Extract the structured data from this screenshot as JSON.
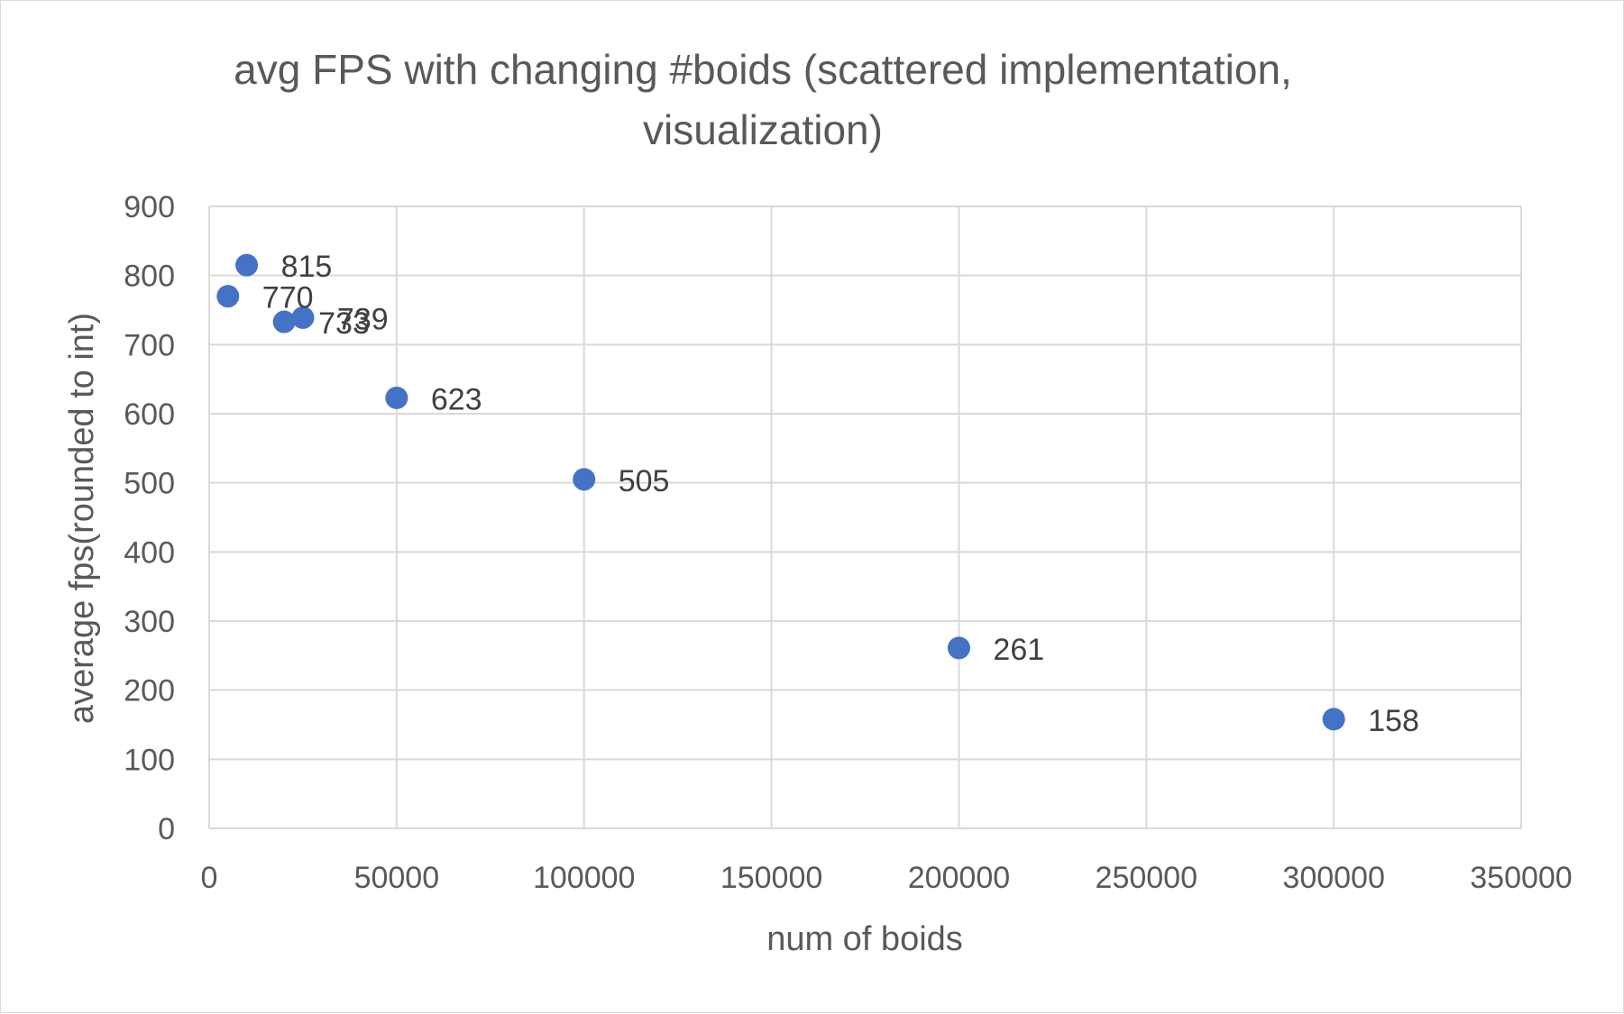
{
  "chart_data": {
    "type": "scatter",
    "title_lines": [
      "avg FPS with changing #boids (scattered implementation,",
      "visualization)"
    ],
    "xlabel": "num of boids",
    "ylabel": "average fps(rounded to int)",
    "xlim": [
      0,
      350000
    ],
    "ylim": [
      0,
      900
    ],
    "x_ticks": [
      0,
      50000,
      100000,
      150000,
      200000,
      250000,
      300000,
      350000
    ],
    "y_ticks": [
      0,
      100,
      200,
      300,
      400,
      500,
      600,
      700,
      800,
      900
    ],
    "grid": true,
    "legend": "none",
    "series": [
      {
        "color": "#4472c4",
        "points": [
          {
            "x": 5000,
            "y": 770
          },
          {
            "x": 10000,
            "y": 815
          },
          {
            "x": 20000,
            "y": 733
          },
          {
            "x": 25000,
            "y": 739
          },
          {
            "x": 50000,
            "y": 623
          },
          {
            "x": 100000,
            "y": 505
          },
          {
            "x": 200000,
            "y": 261
          },
          {
            "x": 300000,
            "y": 158
          }
        ]
      }
    ],
    "data_labels": [
      "770",
      "815",
      "733",
      "739",
      "623",
      "505",
      "261",
      "158"
    ]
  }
}
